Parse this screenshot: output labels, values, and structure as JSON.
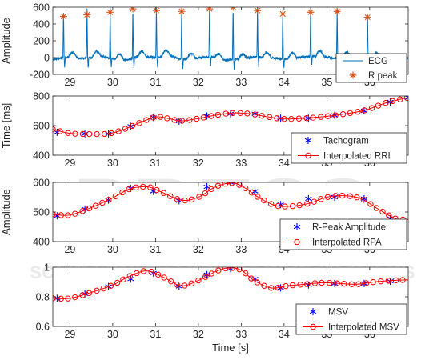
{
  "watermark": {
    "main": "PRESS",
    "sub": "SCIENCE AND TECHNOLOGY PUBLICATIONS"
  },
  "colors": {
    "ecg": "#0072bd",
    "rpeak": "#d95319",
    "marker": "#0000ff",
    "interp": "#ff0000",
    "axis": "#262626",
    "background": "#ffffff"
  },
  "chart_data": [
    {
      "type": "line",
      "ylabel": "Amplitude",
      "xlim": [
        28.6,
        36.9
      ],
      "ylim": [
        -200,
        600
      ],
      "xticks": [
        29,
        30,
        31,
        32,
        33,
        34,
        35,
        36
      ],
      "yticks": [
        -200,
        0,
        200,
        400,
        600
      ],
      "show_xtick_labels": true,
      "legend_position": "bottom-right",
      "series": [
        {
          "name": "ECG",
          "kind": "ecg",
          "baseline": [
            [
              28.6,
              -20
            ],
            [
              29.0,
              10
            ],
            [
              29.3,
              -15
            ],
            [
              29.7,
              20
            ],
            [
              30.0,
              -10
            ],
            [
              30.3,
              -30
            ],
            [
              30.6,
              15
            ],
            [
              31.0,
              0
            ],
            [
              31.3,
              30
            ],
            [
              31.6,
              -20
            ],
            [
              31.9,
              -10
            ],
            [
              32.3,
              10
            ],
            [
              32.6,
              -30
            ],
            [
              33.0,
              -20
            ],
            [
              33.3,
              10
            ],
            [
              33.6,
              0
            ],
            [
              34.0,
              -15
            ],
            [
              34.4,
              5
            ],
            [
              34.8,
              20
            ],
            [
              35.2,
              -10
            ],
            [
              35.6,
              10
            ],
            [
              36.0,
              -5
            ],
            [
              36.4,
              0
            ],
            [
              36.9,
              -10
            ]
          ],
          "peaks_x": [
            28.85,
            29.4,
            29.94,
            30.47,
            31.02,
            31.61,
            32.26,
            32.81,
            33.38,
            33.97,
            34.62,
            35.24,
            35.95
          ],
          "peak_height": [
            600,
            600,
            600,
            620,
            600,
            600,
            620,
            640,
            600,
            580,
            600,
            600,
            590
          ]
        },
        {
          "name": "R peak",
          "kind": "star",
          "x": [
            28.85,
            29.4,
            29.94,
            30.47,
            31.02,
            31.61,
            32.26,
            32.81,
            33.38,
            33.97,
            34.62,
            35.24,
            35.95
          ],
          "y": [
            490,
            510,
            540,
            580,
            560,
            550,
            580,
            600,
            560,
            520,
            540,
            550,
            480
          ]
        }
      ]
    },
    {
      "type": "line",
      "ylabel": "Time [ms]",
      "xlim": [
        28.6,
        36.9
      ],
      "ylim": [
        400,
        800
      ],
      "xticks": [
        29,
        30,
        31,
        32,
        33,
        34,
        35,
        36
      ],
      "yticks": [
        400,
        600,
        800
      ],
      "show_xtick_labels": true,
      "legend_position": "bottom-right",
      "series": [
        {
          "name": "Tachogram",
          "kind": "asterisk",
          "x": [
            28.7,
            29.35,
            29.9,
            30.42,
            30.95,
            31.55,
            32.2,
            32.75,
            33.32,
            33.92,
            34.57,
            35.18,
            35.87,
            36.48,
            36.9
          ],
          "y": [
            555,
            545,
            545,
            595,
            655,
            630,
            665,
            680,
            680,
            650,
            650,
            670,
            700,
            760,
            790
          ]
        },
        {
          "name": "Interpolated RRI",
          "kind": "interp",
          "x": [
            28.6,
            29.0,
            29.5,
            29.9,
            30.2,
            30.6,
            31.0,
            31.3,
            31.6,
            32.0,
            32.4,
            32.8,
            33.2,
            33.6,
            34.0,
            34.5,
            35.0,
            35.4,
            35.9,
            36.4,
            36.9
          ],
          "y": [
            575,
            548,
            543,
            546,
            568,
            615,
            658,
            648,
            632,
            648,
            670,
            685,
            680,
            660,
            645,
            650,
            663,
            678,
            705,
            755,
            790
          ]
        }
      ]
    },
    {
      "type": "line",
      "ylabel": "Amplitude",
      "xlim": [
        28.6,
        36.9
      ],
      "ylim": [
        400,
        600
      ],
      "xticks": [
        29,
        30,
        31,
        32,
        33,
        34,
        35,
        36
      ],
      "yticks": [
        400,
        500,
        600
      ],
      "show_xtick_labels": true,
      "legend_position": "bottom-right",
      "series": [
        {
          "name": "R-Peak Amplitude",
          "kind": "asterisk",
          "x": [
            28.7,
            29.35,
            29.9,
            30.42,
            30.95,
            31.55,
            32.2,
            32.75,
            33.32,
            33.92,
            34.57,
            35.18,
            35.87,
            36.48
          ],
          "y": [
            487,
            510,
            540,
            580,
            570,
            538,
            585,
            600,
            570,
            525,
            545,
            550,
            545,
            478
          ]
        },
        {
          "name": "Interpolated RPA",
          "kind": "interp",
          "x": [
            28.6,
            29.0,
            29.5,
            30.0,
            30.4,
            30.8,
            31.1,
            31.6,
            32.0,
            32.4,
            32.8,
            33.1,
            33.4,
            33.8,
            34.2,
            34.6,
            35.0,
            35.4,
            35.8,
            36.2,
            36.6,
            36.9
          ],
          "y": [
            492,
            490,
            515,
            548,
            578,
            585,
            570,
            540,
            550,
            585,
            598,
            580,
            550,
            522,
            520,
            530,
            550,
            555,
            545,
            510,
            478,
            475
          ]
        }
      ]
    },
    {
      "type": "line",
      "ylabel": "",
      "xlabel": "Time [s]",
      "xlim": [
        28.6,
        36.9
      ],
      "ylim": [
        0.6,
        1
      ],
      "xticks": [
        29,
        30,
        31,
        32,
        33,
        34,
        35,
        36
      ],
      "yticks": [
        0.6,
        0.8,
        1
      ],
      "show_xtick_labels": true,
      "legend_position": "bottom-right",
      "series": [
        {
          "name": "MSV",
          "kind": "asterisk",
          "x": [
            28.7,
            29.35,
            29.9,
            30.42,
            30.95,
            31.55,
            32.2,
            32.75,
            33.32,
            33.92,
            34.57,
            35.18,
            35.87,
            36.48
          ],
          "y": [
            0.79,
            0.82,
            0.87,
            0.92,
            0.96,
            0.87,
            0.95,
            0.99,
            0.92,
            0.86,
            0.88,
            0.89,
            0.89,
            0.905
          ]
        },
        {
          "name": "Interpolated MSV",
          "kind": "interp",
          "x": [
            28.6,
            29.0,
            29.5,
            30.0,
            30.4,
            30.8,
            31.2,
            31.6,
            32.0,
            32.4,
            32.7,
            33.0,
            33.3,
            33.7,
            34.1,
            34.5,
            34.9,
            35.3,
            35.7,
            36.1,
            36.5,
            36.9
          ],
          "y": [
            0.79,
            0.79,
            0.83,
            0.88,
            0.94,
            0.975,
            0.93,
            0.875,
            0.91,
            0.97,
            0.995,
            0.98,
            0.91,
            0.86,
            0.875,
            0.885,
            0.895,
            0.89,
            0.885,
            0.9,
            0.91,
            0.915
          ]
        }
      ]
    }
  ]
}
